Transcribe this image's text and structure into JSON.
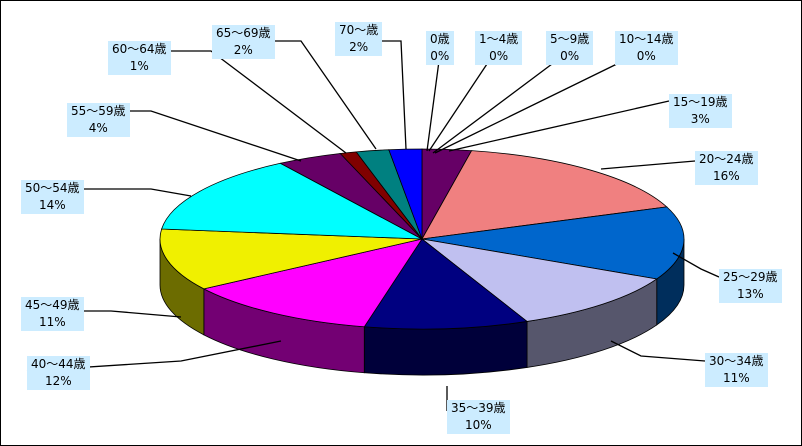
{
  "chart_data": {
    "type": "pie",
    "title": "",
    "slices": [
      {
        "label": "0歳",
        "value": 0,
        "display": "0%",
        "color": "#660066"
      },
      {
        "label": "1～4歳",
        "value": 0,
        "display": "0%",
        "color": "#660066"
      },
      {
        "label": "5～9歳",
        "value": 0,
        "display": "0%",
        "color": "#660066"
      },
      {
        "label": "10～14歳",
        "value": 0,
        "display": "0%",
        "color": "#660066"
      },
      {
        "label": "15～19歳",
        "value": 3,
        "display": "3%",
        "color": "#660066"
      },
      {
        "label": "20～24歳",
        "value": 16,
        "display": "16%",
        "color": "#f08080"
      },
      {
        "label": "25～29歳",
        "value": 13,
        "display": "13%",
        "color": "#0066cc"
      },
      {
        "label": "30～34歳",
        "value": 11,
        "display": "11%",
        "color": "#c0c0f0"
      },
      {
        "label": "35～39歳",
        "value": 10,
        "display": "10%",
        "color": "#000080"
      },
      {
        "label": "40～44歳",
        "value": 12,
        "display": "12%",
        "color": "#ff00ff"
      },
      {
        "label": "45～49歳",
        "value": 11,
        "display": "11%",
        "color": "#f0f000"
      },
      {
        "label": "50～54歳",
        "value": 14,
        "display": "14%",
        "color": "#00ffff"
      },
      {
        "label": "55～59歳",
        "value": 4,
        "display": "4%",
        "color": "#660066"
      },
      {
        "label": "60～64歳",
        "value": 1,
        "display": "1%",
        "color": "#800000"
      },
      {
        "label": "65～69歳",
        "value": 2,
        "display": "2%",
        "color": "#008080"
      },
      {
        "label": "70～歳",
        "value": 2,
        "display": "2%",
        "color": "#0000ff"
      }
    ]
  }
}
